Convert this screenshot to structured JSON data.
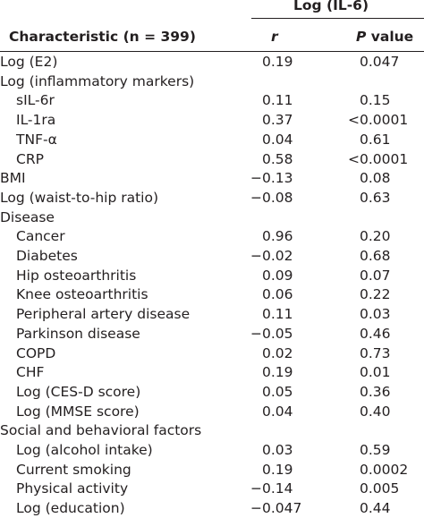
{
  "header": {
    "group_label": "Log (IL-6)",
    "characteristic_label": "Characteristic (n = 399)",
    "r_label": "r",
    "p_label_italic": "P",
    "p_label_rest": " value"
  },
  "rows": [
    {
      "label": "Log (E2)",
      "indent": false,
      "r": "0.19",
      "p": "0.047"
    },
    {
      "label": "Log (inflammatory markers)",
      "indent": false,
      "r": "",
      "p": ""
    },
    {
      "label": "sIL-6r",
      "indent": true,
      "r": "0.11",
      "p": "0.15"
    },
    {
      "label": "IL-1ra",
      "indent": true,
      "r": "0.37",
      "p": "<0.0001"
    },
    {
      "label": "TNF-α",
      "indent": true,
      "r": "0.04",
      "p": "0.61"
    },
    {
      "label": "CRP",
      "indent": true,
      "r": "0.58",
      "p": "<0.0001"
    },
    {
      "label": "BMI",
      "indent": false,
      "r": "−0.13",
      "p": "0.08"
    },
    {
      "label": "Log (waist-to-hip ratio)",
      "indent": false,
      "r": "−0.08",
      "p": "0.63"
    },
    {
      "label": "Disease",
      "indent": false,
      "r": "",
      "p": ""
    },
    {
      "label": "Cancer",
      "indent": true,
      "r": "0.96",
      "p": "0.20"
    },
    {
      "label": "Diabetes",
      "indent": true,
      "r": "−0.02",
      "p": "0.68"
    },
    {
      "label": "Hip osteoarthritis",
      "indent": true,
      "r": "0.09",
      "p": "0.07"
    },
    {
      "label": "Knee osteoarthritis",
      "indent": true,
      "r": "0.06",
      "p": "0.22"
    },
    {
      "label": "Peripheral artery disease",
      "indent": true,
      "r": "0.11",
      "p": "0.03"
    },
    {
      "label": "Parkinson disease",
      "indent": true,
      "r": "−0.05",
      "p": "0.46"
    },
    {
      "label": "COPD",
      "indent": true,
      "r": "0.02",
      "p": "0.73"
    },
    {
      "label": "CHF",
      "indent": true,
      "r": "0.19",
      "p": "0.01"
    },
    {
      "label": "Log (CES-D score)",
      "indent": true,
      "r": "0.05",
      "p": "0.36"
    },
    {
      "label": "Log (MMSE score)",
      "indent": true,
      "r": "0.04",
      "p": "0.40"
    },
    {
      "label": "Social and behavioral factors",
      "indent": false,
      "r": "",
      "p": ""
    },
    {
      "label": "Log (alcohol intake)",
      "indent": true,
      "r": "0.03",
      "p": "0.59"
    },
    {
      "label": "Current smoking",
      "indent": true,
      "r": "0.19",
      "p": "0.0002"
    },
    {
      "label": "Physical activity",
      "indent": true,
      "r": "−0.14",
      "p": "0.005"
    },
    {
      "label": "Log (education)",
      "indent": true,
      "r": "−0.047",
      "p": "0.44"
    }
  ]
}
